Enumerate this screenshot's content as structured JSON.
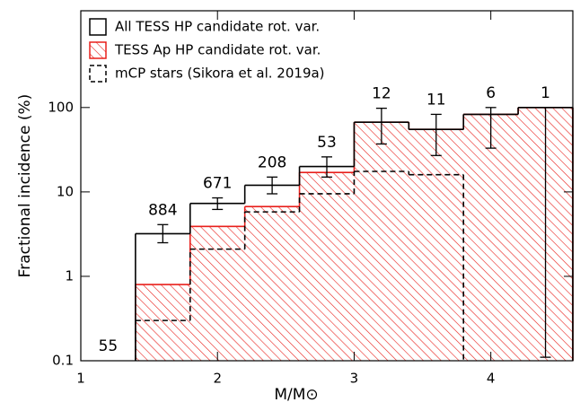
{
  "chart_data": {
    "type": "step-histogram",
    "x_label": "M/M⊙",
    "y_label": "Fractional incidence (%)",
    "bins": [
      1.0,
      1.4,
      1.8,
      2.2,
      2.6,
      3.0,
      3.4,
      3.8,
      4.2,
      4.6
    ],
    "series": [
      {
        "name": "All TESS HP candidate rot. var.",
        "color": "#000000",
        "style": "solid",
        "values": [
          null,
          3.2,
          7.3,
          12,
          20,
          67,
          55,
          83,
          100
        ],
        "err_low": [
          null,
          2.5,
          6.2,
          9.5,
          15,
          37,
          27,
          33,
          0.11
        ],
        "err_high": [
          null,
          4.1,
          8.5,
          15,
          26,
          98,
          83,
          100,
          100
        ]
      },
      {
        "name": "TESS Ap HP candidate rot. var.",
        "color": "#e8201c",
        "style": "hatched",
        "values": [
          null,
          0.8,
          3.9,
          6.7,
          17,
          67,
          55,
          83,
          100
        ]
      },
      {
        "name": "mCP stars (Sikora et al. 2019a)",
        "color": "#000000",
        "style": "dashed",
        "values": [
          null,
          0.3,
          2.1,
          5.8,
          9.5,
          17.5,
          16,
          null,
          null
        ]
      }
    ],
    "counts": [
      55,
      884,
      671,
      208,
      53,
      12,
      11,
      6,
      1
    ],
    "xlim": [
      1.0,
      4.6
    ],
    "xticks": [
      1,
      2,
      3,
      4
    ],
    "ylim": [
      0.1,
      1400
    ],
    "yticks": [
      0.1,
      1,
      10,
      100
    ],
    "log_y": true,
    "legend": "top-left"
  }
}
